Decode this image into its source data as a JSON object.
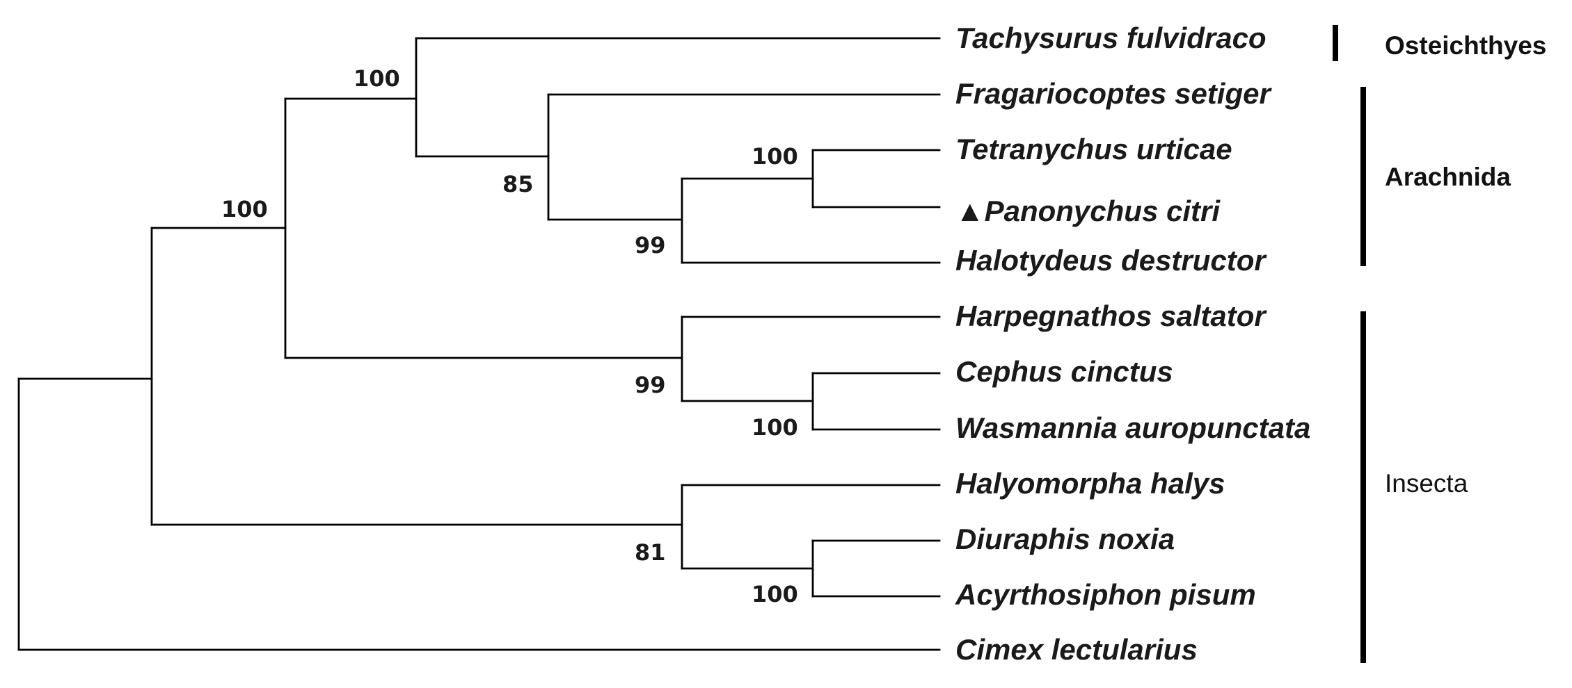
{
  "taxa": [
    {
      "name": "Tachysurus fulvidraco",
      "marker": ""
    },
    {
      "name": "Fragariocoptes setiger",
      "marker": ""
    },
    {
      "name": "Tetranychus urticae",
      "marker": ""
    },
    {
      "name": "Panonychus citri",
      "marker": "▲"
    },
    {
      "name": "Halotydeus destructor",
      "marker": ""
    },
    {
      "name": "Harpegnathos saltator",
      "marker": ""
    },
    {
      "name": "Cephus cinctus",
      "marker": ""
    },
    {
      "name": "Wasmannia auropunctata",
      "marker": ""
    },
    {
      "name": "Halyomorpha halys",
      "marker": ""
    },
    {
      "name": "Diuraphis noxia",
      "marker": ""
    },
    {
      "name": "Acyrthosiphon pisum",
      "marker": ""
    },
    {
      "name": "Cimex lectularius",
      "marker": ""
    }
  ],
  "support_values": {
    "tachysurus_mites": "100",
    "fragariocoptes_group": "85",
    "tetranychus_panonychus": "100",
    "tetranychidae_halotydeus": "99",
    "ingroup_upper": "100",
    "hymenoptera": "99",
    "cephus_wasmannia": "100",
    "hemiptera": "81",
    "aphids": "100"
  },
  "clades": [
    {
      "label": "Osteichthyes",
      "bold": true
    },
    {
      "label": "Arachnida",
      "bold": true
    },
    {
      "label": "Insecta",
      "bold": false
    }
  ],
  "colors": {
    "line": "#000000",
    "text": "#1a1a1a"
  }
}
